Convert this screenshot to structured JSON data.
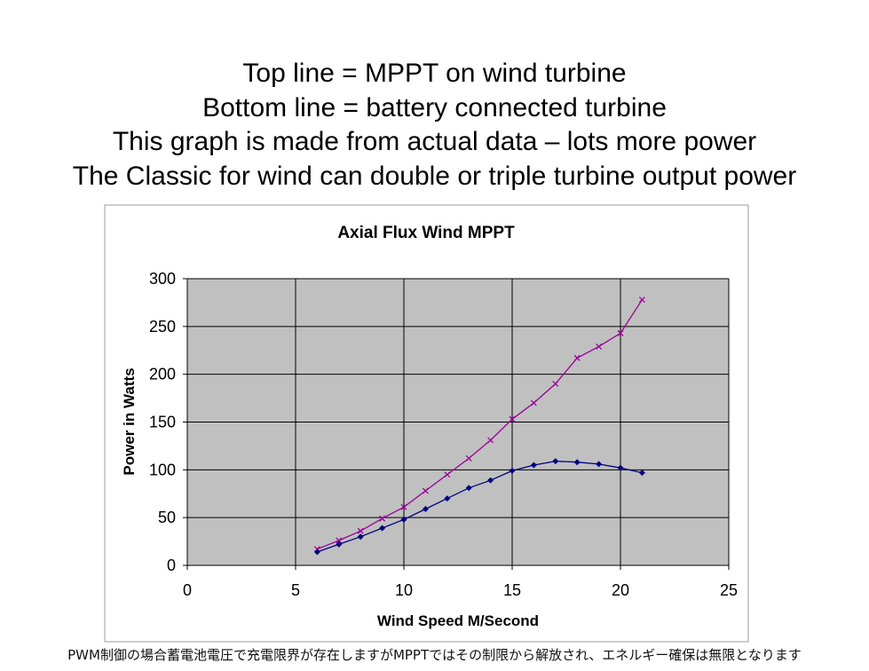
{
  "slide": {
    "lines": [
      "Top line = MPPT on wind turbine",
      "Bottom line = battery connected turbine",
      "This graph is made from actual data – lots more power",
      "The Classic for wind can double or triple turbine output power"
    ],
    "footnote": "PWM制御の場合蓄電池電圧で充電限界が存在しますがMPPTではその制限から解放され、エネルギー確保は無限となります"
  },
  "chart_data": {
    "type": "line",
    "title": "Axial Flux Wind MPPT",
    "xlabel": "Wind Speed M/Second",
    "ylabel": "Power in Watts",
    "xlim": [
      0,
      25
    ],
    "ylim": [
      0,
      300
    ],
    "xticks": [
      0,
      5,
      10,
      15,
      20,
      25
    ],
    "yticks": [
      0,
      50,
      100,
      150,
      200,
      250,
      300
    ],
    "grid": true,
    "legend": "none",
    "colors": {
      "plot_background": "#c0c0c0",
      "frame": "#9e9e9e",
      "grid": "#000000"
    },
    "series": [
      {
        "color": "#990099",
        "marker": "x",
        "x": [
          6,
          7,
          8,
          9,
          10,
          11,
          12,
          13,
          14,
          15,
          16,
          17,
          18,
          19,
          20,
          21
        ],
        "y": [
          17,
          26,
          36,
          49,
          61,
          78,
          95,
          112,
          131,
          153,
          170,
          190,
          217,
          229,
          243,
          278
        ]
      },
      {
        "color": "#000080",
        "marker": "diamond",
        "x": [
          6,
          7,
          8,
          9,
          10,
          11,
          12,
          13,
          14,
          15,
          16,
          17,
          18,
          19,
          20,
          21
        ],
        "y": [
          14,
          22,
          30,
          39,
          48,
          59,
          70,
          81,
          89,
          99,
          105,
          109,
          108,
          106,
          102,
          97
        ]
      }
    ]
  }
}
